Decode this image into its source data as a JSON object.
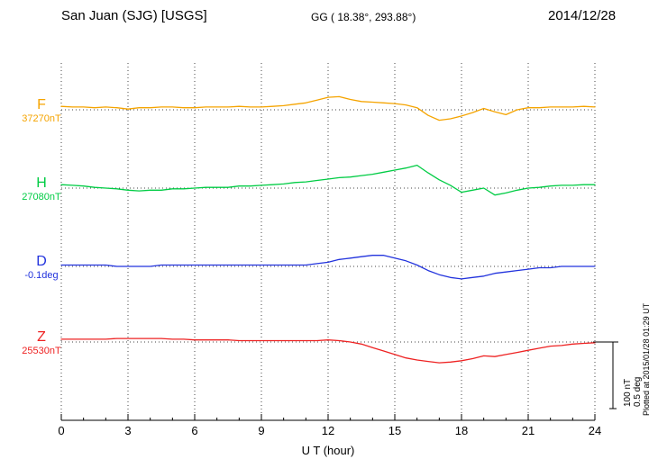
{
  "header": {
    "station": "San Juan (SJG)  [USGS]",
    "geo": "GG ( 18.38°, 293.88°)",
    "date": "2014/12/28"
  },
  "axis": {
    "xlabel": "U T (hour)"
  },
  "annotations": {
    "plotted_at": "Plotted at 2015/01/28 01:29 UT",
    "scale_nt": "100 nT",
    "scale_deg": "0.5 deg"
  },
  "chart_data": {
    "type": "line",
    "title": "San Juan (SJG) [USGS] magnetogram for 2014/12/28",
    "xlabel": "U T (hour)",
    "xlim": [
      0,
      24
    ],
    "xticks": [
      0,
      3,
      6,
      9,
      12,
      15,
      18,
      21,
      24
    ],
    "x_step_hours": 0.5,
    "grid": "dotted vertical at each 3h tick; dotted horizontal baseline per trace",
    "scale_bar": {
      "nT": 100,
      "deg": 0.5
    },
    "series": [
      {
        "name": "F",
        "baseline_label": "37270nT",
        "baseline_value": 37270,
        "unit": "nT",
        "color": "#f5a400",
        "offsets": [
          5,
          4,
          4,
          3,
          4,
          3,
          1,
          3,
          3,
          4,
          4,
          3,
          3,
          4,
          4,
          4,
          5,
          4,
          4,
          5,
          6,
          8,
          10,
          14,
          18,
          19,
          15,
          12,
          11,
          10,
          9,
          7,
          3,
          -8,
          -15,
          -13,
          -9,
          -4,
          2,
          -3,
          -7,
          0,
          3,
          3,
          4,
          4,
          4,
          5,
          4
        ]
      },
      {
        "name": "H",
        "baseline_label": "27080nT",
        "baseline_value": 27080,
        "unit": "nT",
        "color": "#00cc44",
        "offsets": [
          5,
          4,
          3,
          1,
          0,
          -1,
          -3,
          -4,
          -3,
          -3,
          -1,
          -1,
          0,
          1,
          1,
          1,
          3,
          3,
          4,
          5,
          6,
          8,
          9,
          11,
          13,
          15,
          16,
          18,
          20,
          23,
          26,
          29,
          33,
          22,
          12,
          4,
          -6,
          -3,
          0,
          -10,
          -7,
          -3,
          0,
          1,
          3,
          4,
          4,
          5,
          5
        ]
      },
      {
        "name": "D",
        "baseline_label": "-0.1deg",
        "baseline_value": -0.1,
        "unit": "deg",
        "color": "#2233dd",
        "offsets": [
          0.01,
          0.01,
          0.01,
          0.01,
          0.01,
          0.0,
          0.0,
          0.0,
          0.0,
          0.01,
          0.01,
          0.01,
          0.01,
          0.01,
          0.01,
          0.01,
          0.01,
          0.01,
          0.01,
          0.01,
          0.01,
          0.01,
          0.01,
          0.02,
          0.03,
          0.05,
          0.06,
          0.07,
          0.08,
          0.08,
          0.06,
          0.04,
          0.01,
          -0.03,
          -0.06,
          -0.08,
          -0.09,
          -0.08,
          -0.07,
          -0.05,
          -0.04,
          -0.03,
          -0.02,
          -0.01,
          -0.01,
          0.0,
          0.0,
          0.0,
          0.0
        ]
      },
      {
        "name": "Z",
        "baseline_label": "25530nT",
        "baseline_value": 25530,
        "unit": "nT",
        "color": "#ee2222",
        "offsets": [
          4,
          4,
          4,
          4,
          4,
          5,
          5,
          5,
          5,
          5,
          4,
          4,
          3,
          3,
          3,
          3,
          2,
          2,
          2,
          2,
          2,
          2,
          2,
          2,
          3,
          2,
          0,
          -3,
          -8,
          -13,
          -18,
          -23,
          -26,
          -28,
          -30,
          -29,
          -27,
          -24,
          -20,
          -21,
          -18,
          -15,
          -12,
          -9,
          -6,
          -5,
          -3,
          -2,
          -1
        ]
      }
    ]
  }
}
